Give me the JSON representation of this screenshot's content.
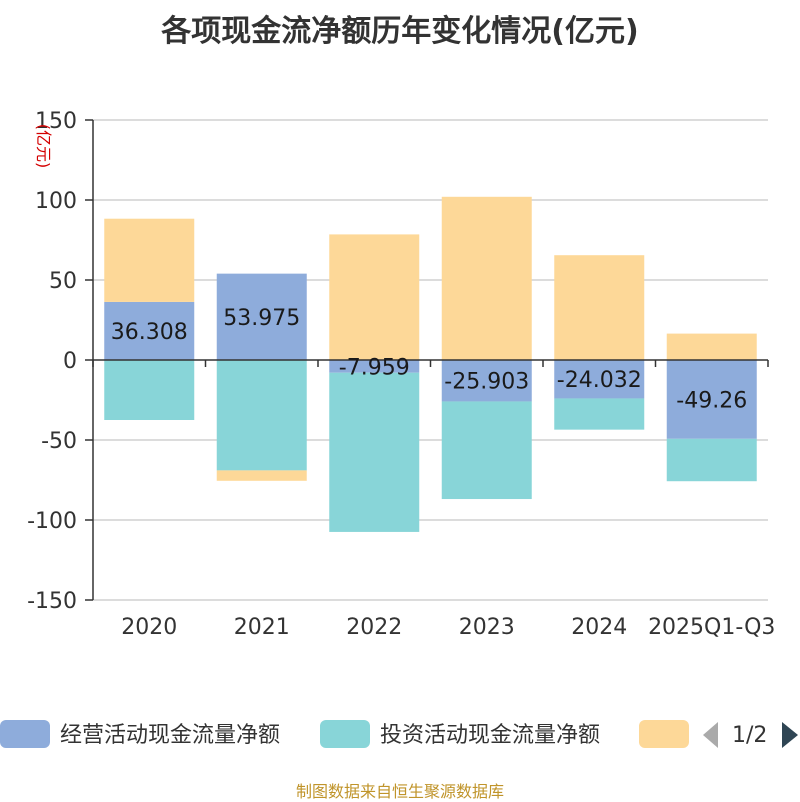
{
  "title": "各项现金流净额历年变化情况(亿元)",
  "source": "制图数据来自恒生聚源数据库",
  "chart_data": {
    "type": "bar",
    "stacked": true,
    "title": "各项现金流净额历年变化情况(亿元)",
    "ylabel": "(亿元)",
    "ylim": [
      -150,
      150
    ],
    "yticks": [
      150,
      100,
      50,
      0,
      -50,
      -100,
      -150
    ],
    "categories": [
      "2020",
      "2021",
      "2022",
      "2023",
      "2024",
      "2025Q1-Q3"
    ],
    "series": [
      {
        "name": "经营活动现金流量净额",
        "color": "#8eacdb",
        "values": [
          36.308,
          53.975,
          -7.959,
          -25.903,
          -24.032,
          -49.26
        ],
        "labels": [
          "36.308",
          "53.975",
          "-7.959",
          "-25.903",
          "-24.032",
          "-49.26"
        ]
      },
      {
        "name": "投资活动现金流量净额",
        "color": "#88d5d8",
        "values": [
          -37.5,
          -69,
          -99.5,
          -61,
          -19.5,
          -26.5
        ]
      },
      {
        "name": "",
        "color": "#fdd898",
        "values": [
          52,
          -6.5,
          78.5,
          102,
          65.5,
          16.5
        ]
      }
    ],
    "legend": {
      "position": "bottom",
      "page": "1/2"
    },
    "grid": true
  }
}
